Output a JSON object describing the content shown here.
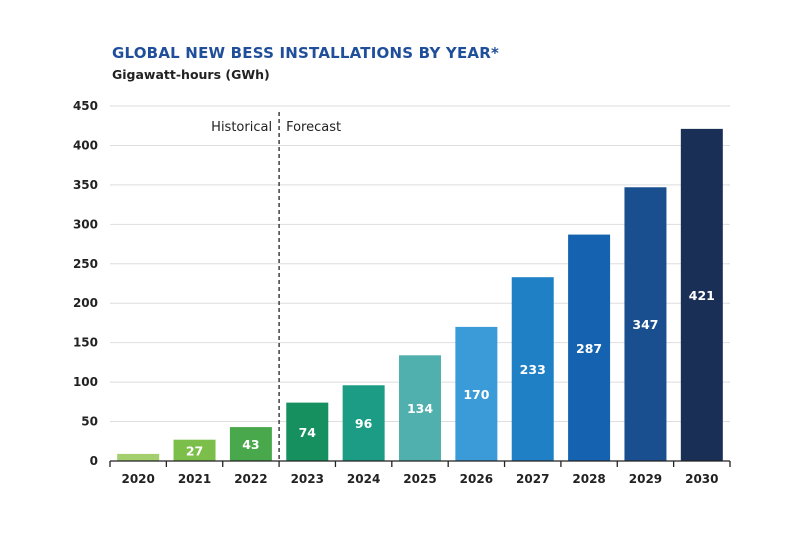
{
  "chart_data": {
    "type": "bar",
    "title": "GLOBAL NEW BESS INSTALLATIONS BY YEAR*",
    "ylabel": "Gigawatt-hours (GWh)",
    "xlabel": "",
    "ylim": [
      0,
      450
    ],
    "yticks": [
      0,
      50,
      100,
      150,
      200,
      250,
      300,
      350,
      400,
      450
    ],
    "grid": true,
    "categories": [
      "2020",
      "2021",
      "2022",
      "2023",
      "2024",
      "2025",
      "2026",
      "2027",
      "2028",
      "2029",
      "2030"
    ],
    "values": [
      9,
      27,
      43,
      74,
      96,
      134,
      170,
      233,
      287,
      347,
      421
    ],
    "data_labels": [
      "",
      "27",
      "43",
      "74",
      "96",
      "134",
      "170",
      "233",
      "287",
      "347",
      "421"
    ],
    "bar_colors": [
      "#a3cf6e",
      "#7bbf4a",
      "#4aa84c",
      "#15905e",
      "#1c9c84",
      "#4fb0ae",
      "#3b9ad8",
      "#1f80c6",
      "#1563b0",
      "#194f8e",
      "#1a2f55"
    ],
    "regions": {
      "historical": "Historical",
      "forecast": "Forecast",
      "divider_after": "2022"
    }
  }
}
